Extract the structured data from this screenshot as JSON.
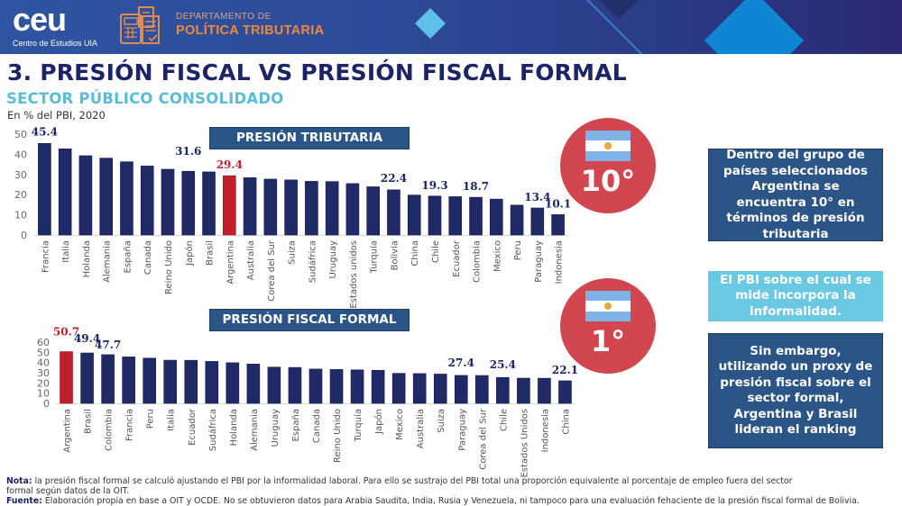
{
  "header": {
    "logo_text": "ceu",
    "logo_subtitle": "Centro de Estudios UIA",
    "department_line1": "DEPARTAMENTO DE",
    "department_line2": "POLÍTICA TRIBUTARIA",
    "icon": "calculator-document-icon"
  },
  "title": "3. PRESIÓN FISCAL VS PRESIÓN FISCAL FORMAL",
  "subtitle": "SECTOR PÚBLICO CONSOLIDADO",
  "unit_note": "En % del PBI, 2020",
  "colors": {
    "bar": "#1f2a66",
    "highlight": "#c0202d",
    "header_box": "#2c5587",
    "light_box": "#6ac8e2",
    "badge": "#d2474f",
    "title": "#1c2468",
    "subtitle": "#5bbcd6"
  },
  "chart_data": [
    {
      "type": "bar",
      "title": "PRESIÓN TRIBUTARIA",
      "xlabel": "",
      "ylabel": "",
      "ylim": [
        0,
        50
      ],
      "yticks": [
        0,
        10,
        20,
        30,
        40,
        50
      ],
      "grid": false,
      "highlight": "Argentina",
      "categories": [
        "Francia",
        "Italia",
        "Holanda",
        "Alemania",
        "España",
        "Canada",
        "Reino Unido",
        "Japón",
        "Brasil",
        "Argentina",
        "Australia",
        "Corea del Sur",
        "Suiza",
        "Sudáfrica",
        "Uruguay",
        "Estados unidos",
        "Turquía",
        "Bolivia",
        "China",
        "Chile",
        "Ecuador",
        "Colombia",
        "Mexico",
        "Peru",
        "Paraguay",
        "Indonesia"
      ],
      "values": [
        45.4,
        42.7,
        39.3,
        38.1,
        36.3,
        34.2,
        32.6,
        31.6,
        31.3,
        29.4,
        28.4,
        27.7,
        27.3,
        26.6,
        26.5,
        25.5,
        23.9,
        22.4,
        19.8,
        19.3,
        19.0,
        18.7,
        17.8,
        14.8,
        13.4,
        10.1
      ],
      "data_labels": [
        {
          "category": "Francia",
          "text": "45.4"
        },
        {
          "category": "Japón",
          "text": "31.6"
        },
        {
          "category": "Argentina",
          "text": "29.4"
        },
        {
          "category": "Bolivia",
          "text": "22.4"
        },
        {
          "category": "Chile",
          "text": "19.3"
        },
        {
          "category": "Colombia",
          "text": "18.7"
        },
        {
          "category": "Paraguay",
          "text": "13.4"
        },
        {
          "category": "Indonesia",
          "text": "10.1"
        }
      ]
    },
    {
      "type": "bar",
      "title": "PRESIÓN FISCAL FORMAL",
      "xlabel": "",
      "ylabel": "",
      "ylim": [
        0,
        60
      ],
      "yticks": [
        0,
        10,
        20,
        30,
        40,
        50,
        60
      ],
      "grid": false,
      "highlight": "Argentina",
      "categories": [
        "Argentina",
        "Brasil",
        "Colombia",
        "Francia",
        "Peru",
        "Italia",
        "Ecuador",
        "Sudáfrica",
        "Holanda",
        "Alemania",
        "Uruguay",
        "España",
        "Canada",
        "Reino Unido",
        "Turquía",
        "Japón",
        "Mexico",
        "Australia",
        "Suiza",
        "Paraguay",
        "Corea del Sur",
        "Chile",
        "Estados Unidos",
        "Indonesia",
        "China"
      ],
      "values": [
        50.7,
        49.4,
        47.7,
        45.5,
        44.3,
        42.3,
        42.2,
        41.1,
        39.8,
        38.5,
        35.5,
        35.2,
        33.6,
        33.2,
        32.8,
        32.4,
        29.4,
        29.2,
        28.7,
        27.4,
        27.3,
        25.4,
        24.7,
        24.6,
        22.1
      ],
      "data_labels": [
        {
          "category": "Argentina",
          "text": "50.7"
        },
        {
          "category": "Brasil",
          "text": "49.4"
        },
        {
          "category": "Colombia",
          "text": "47.7"
        },
        {
          "category": "Paraguay",
          "text": "27.4"
        },
        {
          "category": "Chile",
          "text": "25.4"
        },
        {
          "category": "China",
          "text": "22.1"
        }
      ]
    }
  ],
  "badges": [
    {
      "rank": "10°",
      "icon": "argentina-flag-icon"
    },
    {
      "rank": "1°",
      "icon": "argentina-flag-icon"
    }
  ],
  "info_boxes": [
    "Dentro del grupo de países seleccionados Argentina se encuentra 10° en términos de presión tributaria",
    "El PBI sobre el cual se mide incorpora la informalidad.",
    "Sin embargo, utilizando un proxy de presión fiscal sobre el sector formal, Argentina y Brasil lideran el ranking"
  ],
  "footnotes": {
    "nota_label": "Nota:",
    "nota_text": " la presión fiscal formal se calculó ajustando el PBI por la informalidad laboral. Para ello se sustrajo del PBI total una proporción equivalente al porcentaje de empleo fuera del sector formal según datos de la OIT.",
    "fuente_label": "Fuente:",
    "fuente_text": " Elaboración propia en base a OIT y OCDE. No se obtuvieron datos para Arabia Saudita, India, Rusia y Venezuela, ni tampoco para una evaluación fehaciente de la presión fiscal formal de Bolivia."
  }
}
